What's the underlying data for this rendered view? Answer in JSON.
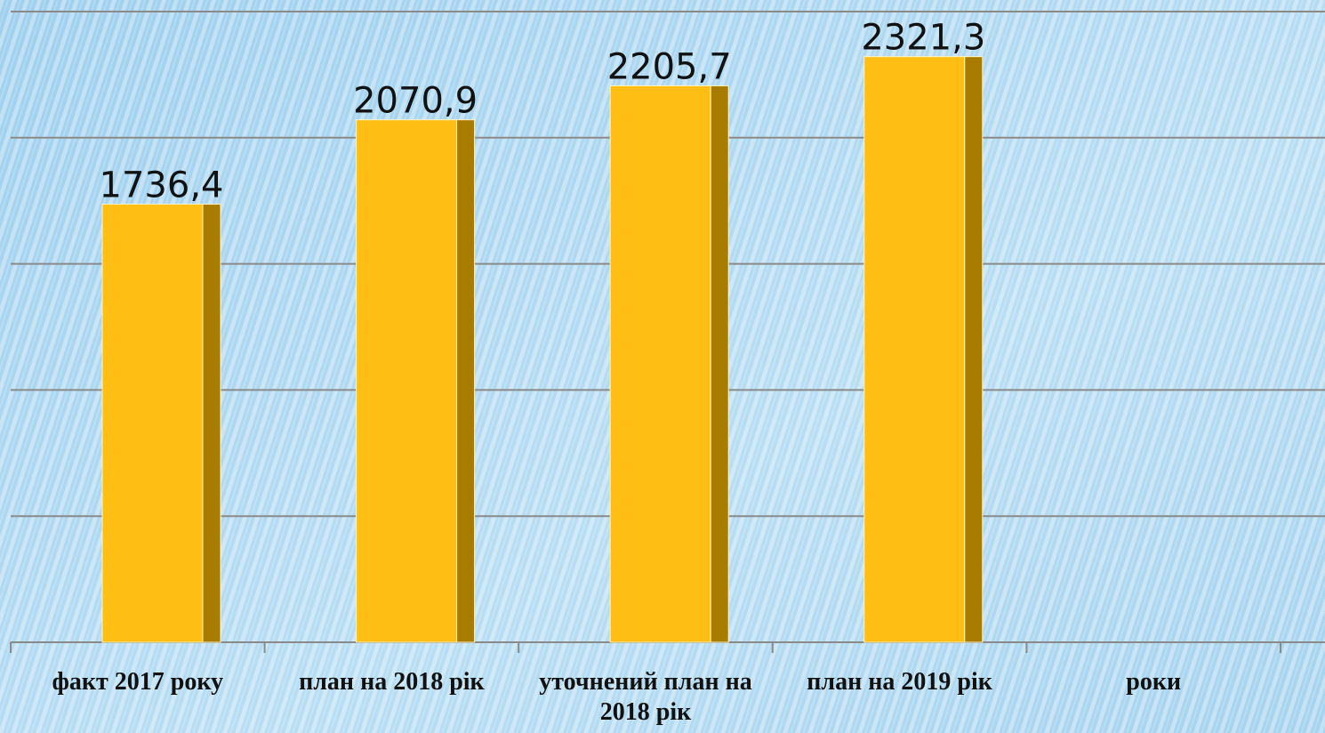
{
  "chart_data": {
    "type": "bar",
    "categories": [
      "факт 2017 року",
      "план на 2018 рік",
      "уточнений план на  2018 рік",
      "план на 2019 рік",
      "роки"
    ],
    "values": [
      1736.4,
      2070.9,
      2205.7,
      2321.3,
      null
    ],
    "value_labels": [
      "1736,4",
      "2070,9",
      "2205,7",
      "2321,3",
      null
    ],
    "color": "#ffbe14",
    "side_color": "#a87c00",
    "ylim": [
      0,
      2500
    ],
    "yticks": [
      0,
      500,
      1000,
      1500,
      2000,
      2500
    ],
    "grid": true
  }
}
